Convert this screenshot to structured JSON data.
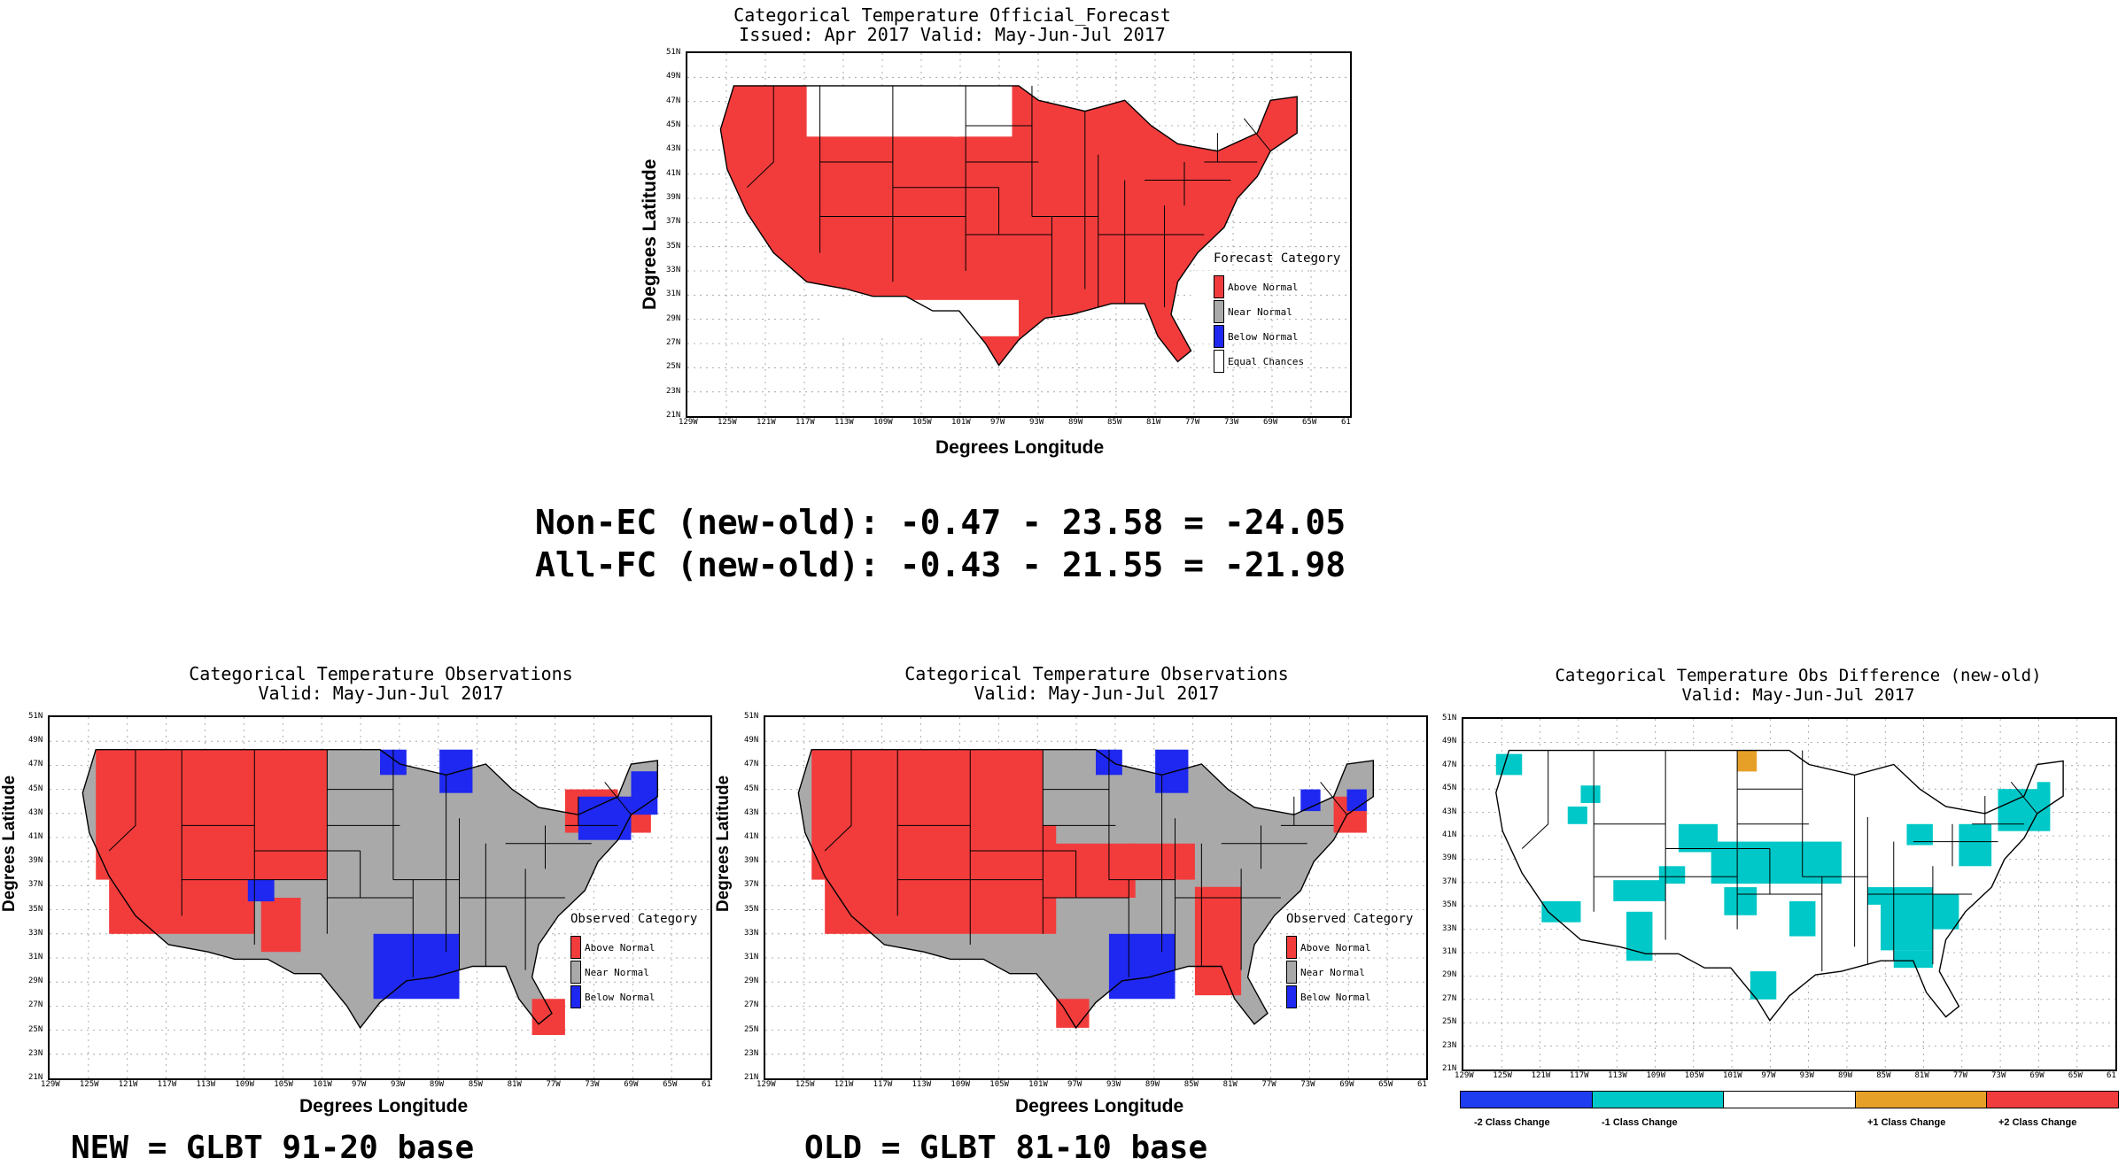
{
  "top_map": {
    "title_line1": "Categorical Temperature Official_Forecast",
    "title_line2": "Issued: Apr 2017 Valid: May-Jun-Jul 2017",
    "xlabel": "Degrees Longitude",
    "ylabel": "Degrees Latitude",
    "legend_title": "Forecast Category",
    "legend_items": [
      "Above Normal",
      "Near Normal",
      "Below Normal",
      "Equal Chances"
    ]
  },
  "axes": {
    "lon_ticks": [
      "129W",
      "125W",
      "121W",
      "117W",
      "113W",
      "109W",
      "105W",
      "101W",
      "97W",
      "93W",
      "89W",
      "85W",
      "81W",
      "77W",
      "73W",
      "69W",
      "65W",
      "61"
    ],
    "lat_ticks": [
      "51N",
      "49N",
      "47N",
      "45N",
      "43N",
      "41N",
      "39N",
      "37N",
      "35N",
      "33N",
      "31N",
      "29N",
      "27N",
      "25N",
      "23N",
      "21N"
    ]
  },
  "stats": {
    "line1": "Non-EC (new-old): -0.47 - 23.58 = -24.05",
    "line2": "All-FC (new-old): -0.43 - 21.55 = -21.98"
  },
  "obs_new": {
    "title_line1": "Categorical Temperature Observations",
    "title_line2": "Valid: May-Jun-Jul 2017",
    "xlabel": "Degrees Longitude",
    "ylabel": "Degrees Latitude",
    "legend_title": "Observed Category",
    "legend_items": [
      "Above Normal",
      "Near Normal",
      "Below Normal"
    ],
    "caption": "NEW = GLBT 91-20 base"
  },
  "obs_old": {
    "title_line1": "Categorical Temperature Observations",
    "title_line2": "Valid: May-Jun-Jul 2017",
    "xlabel": "Degrees Longitude",
    "ylabel": "Degrees Latitude",
    "legend_title": "Observed Category",
    "legend_items": [
      "Above Normal",
      "Near Normal",
      "Below Normal"
    ],
    "caption": "OLD = GLBT 81-10 base"
  },
  "diff_map": {
    "title_line1": "Categorical Temperature Obs Difference (new-old)",
    "title_line2": "Valid: May-Jun-Jul 2017",
    "colorbar_labels": [
      "-2 Class Change",
      "-1 Class Change",
      "+1 Class Change",
      "+2 Class Change"
    ]
  },
  "colors": {
    "above": "#f23c3c",
    "near": "#a9a9a9",
    "below": "#1e28f0",
    "equal": "#ffffff",
    "minus2": "#1e3cf0",
    "minus1": "#00c8c8",
    "zero": "#ffffff",
    "plus1": "#e6a028",
    "plus2": "#f03c3c"
  }
}
